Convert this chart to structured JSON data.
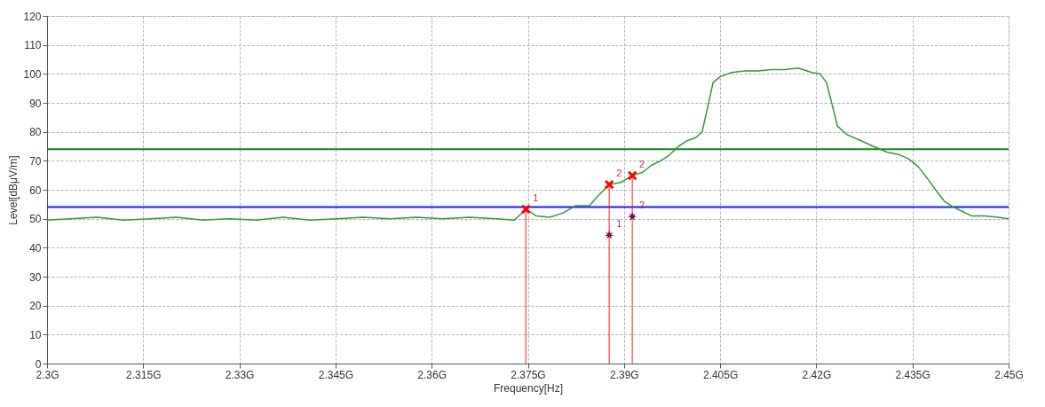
{
  "chart_data": {
    "type": "line",
    "xlabel": "Frequency[Hz]",
    "ylabel": "Level[dBμV/m]",
    "xlim": [
      2.3,
      2.45
    ],
    "xticks": [
      {
        "value": 2.3,
        "label": "2.3G"
      },
      {
        "value": 2.315,
        "label": "2.315G"
      },
      {
        "value": 2.33,
        "label": "2.33G"
      },
      {
        "value": 2.345,
        "label": "2.345G"
      },
      {
        "value": 2.36,
        "label": "2.36G"
      },
      {
        "value": 2.375,
        "label": "2.375G"
      },
      {
        "value": 2.39,
        "label": "2.39G"
      },
      {
        "value": 2.405,
        "label": "2.405G"
      },
      {
        "value": 2.42,
        "label": "2.42G"
      },
      {
        "value": 2.435,
        "label": "2.435G"
      },
      {
        "value": 2.45,
        "label": "2.45G"
      }
    ],
    "ylim": [
      0,
      120
    ],
    "yticks": [
      0,
      10,
      20,
      30,
      40,
      50,
      60,
      70,
      80,
      90,
      100,
      110,
      120
    ],
    "grid": true,
    "series": [
      {
        "color": "#339933",
        "marker": "none",
        "line_style": "solid",
        "x": [
          2.3,
          2.3036,
          2.3078,
          2.3119,
          2.3161,
          2.3202,
          2.3244,
          2.3285,
          2.3327,
          2.3368,
          2.341,
          2.3452,
          2.3493,
          2.3535,
          2.3576,
          2.3618,
          2.3659,
          2.3701,
          2.3729,
          2.3747,
          2.3763,
          2.3784,
          2.3805,
          2.3825,
          2.3846,
          2.386,
          2.3877,
          2.3895,
          2.3913,
          2.3929,
          2.3943,
          2.3957,
          2.3971,
          2.3985,
          2.3999,
          2.4012,
          2.4022,
          2.403,
          2.4039,
          2.405,
          2.4068,
          2.4089,
          2.4109,
          2.413,
          2.4151,
          2.4172,
          2.4193,
          2.4206,
          2.4216,
          2.4224,
          2.4233,
          2.4248,
          2.4269,
          2.4289,
          2.431,
          2.4331,
          2.4345,
          2.4359,
          2.4373,
          2.4386,
          2.44,
          2.4414,
          2.4428,
          2.4442,
          2.4463,
          2.4483,
          2.45
        ],
        "values": [
          49.5,
          50,
          50.5,
          49.5,
          50,
          50.5,
          49.5,
          50,
          49.5,
          50.5,
          49.5,
          50,
          50.5,
          50,
          50.5,
          50,
          50.5,
          50,
          49.5,
          53.3,
          51,
          50.5,
          52,
          54.5,
          54.5,
          58,
          61.8,
          62.5,
          64.9,
          66,
          68.5,
          70,
          72,
          75,
          77,
          78,
          80,
          88,
          97,
          99,
          100.5,
          101,
          101,
          101.5,
          101.5,
          102,
          100.5,
          100,
          97,
          90,
          82,
          79,
          77,
          75,
          73,
          72,
          70.5,
          68,
          64,
          60,
          56,
          54,
          52.5,
          51,
          51,
          50.5,
          50
        ]
      },
      {
        "type": "lollipop",
        "color": "#ff0000",
        "marker": "cross",
        "x": [
          2.3747,
          2.3877,
          2.3913
        ],
        "values": [
          53.3,
          61.8,
          64.9
        ]
      },
      {
        "type": "scatter",
        "color": "#7a1040",
        "marker": "star",
        "x": [
          2.3877,
          2.3913
        ],
        "values": [
          44.4,
          50.8
        ]
      }
    ],
    "ref_lines": [
      {
        "axis": "y",
        "value": 74,
        "color": "#1e7e1e"
      },
      {
        "axis": "y",
        "value": 54,
        "color": "#1a1aff"
      }
    ],
    "annotations": [
      {
        "text": "1",
        "x": 2.3747,
        "y": 53.3
      },
      {
        "text": "2",
        "x": 2.3877,
        "y": 61.8
      },
      {
        "text": "2",
        "x": 2.3913,
        "y": 64.9
      },
      {
        "text": "1",
        "x": 2.3877,
        "y": 44.4
      },
      {
        "text": "2",
        "x": 2.3913,
        "y": 50.8
      }
    ]
  }
}
